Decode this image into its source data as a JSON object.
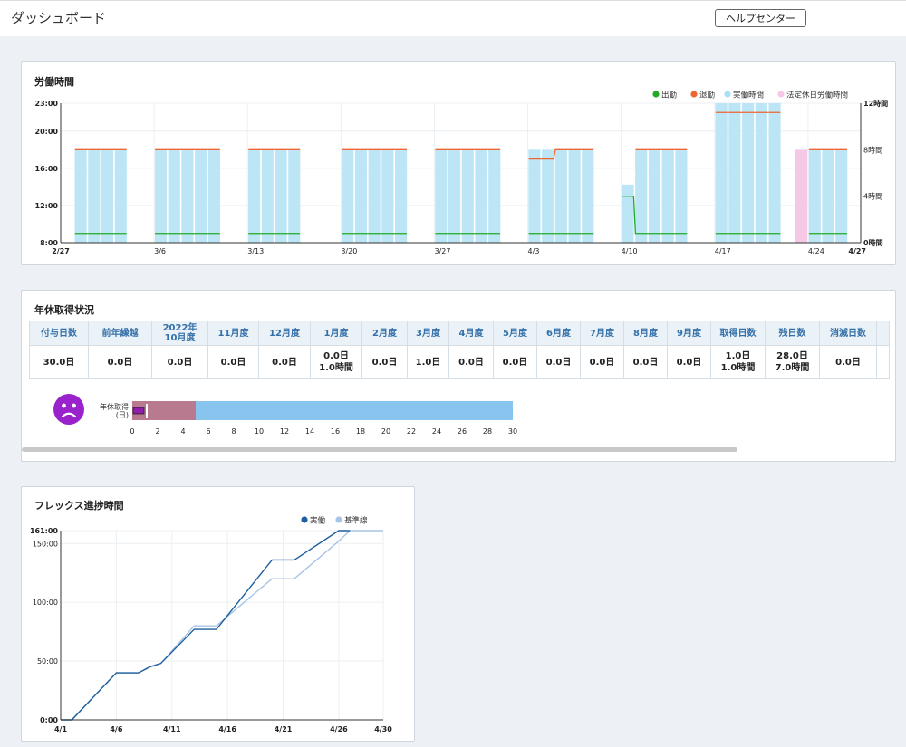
{
  "header": {
    "title": "ダッシュボード",
    "help_label": "ヘルプセンター"
  },
  "work_panel": {
    "title": "労働時間",
    "legend": [
      {
        "label": "出勤",
        "color": "#22aa22",
        "kind": "dot"
      },
      {
        "label": "退勤",
        "color": "#ee6633",
        "kind": "dot"
      },
      {
        "label": "実働時間",
        "color": "#a8e0f5",
        "kind": "dot"
      },
      {
        "label": "法定休日労働時間",
        "color": "#f5c8e6",
        "kind": "dot"
      }
    ],
    "chart_data": {
      "type": "bar",
      "y_left_ticks": [
        "23:00",
        "20:00",
        "16:00",
        "12:00",
        "8:00"
      ],
      "y_left_range": [
        8,
        23
      ],
      "y_right_ticks": [
        "12時間",
        "8時間",
        "4時間",
        "0時間"
      ],
      "y_right_range": [
        0,
        12
      ],
      "x_ticks": [
        "2/27",
        "3/6",
        "3/13",
        "3/20",
        "3/27",
        "4/3",
        "4/10",
        "4/17",
        "4/24",
        "4/27"
      ],
      "days": [
        {
          "date": "2/28",
          "hours": 8,
          "in": 9,
          "out": 18
        },
        {
          "date": "3/1",
          "hours": 8,
          "in": 9,
          "out": 18
        },
        {
          "date": "3/2",
          "hours": 8,
          "in": 9,
          "out": 18
        },
        {
          "date": "3/3",
          "hours": 8,
          "in": 9,
          "out": 18
        },
        {
          "date": "3/6",
          "hours": 8,
          "in": 9,
          "out": 18
        },
        {
          "date": "3/7",
          "hours": 8,
          "in": 9,
          "out": 18
        },
        {
          "date": "3/8",
          "hours": 8,
          "in": 9,
          "out": 18
        },
        {
          "date": "3/9",
          "hours": 8,
          "in": 9,
          "out": 18
        },
        {
          "date": "3/10",
          "hours": 8,
          "in": 9,
          "out": 18
        },
        {
          "date": "3/13",
          "hours": 8,
          "in": 9,
          "out": 18
        },
        {
          "date": "3/14",
          "hours": 8,
          "in": 9,
          "out": 18
        },
        {
          "date": "3/15",
          "hours": 8,
          "in": 9,
          "out": 18
        },
        {
          "date": "3/16",
          "hours": 8,
          "in": 9,
          "out": 18
        },
        {
          "date": "3/20",
          "hours": 8,
          "in": 9,
          "out": 18
        },
        {
          "date": "3/21",
          "hours": 8,
          "in": 9,
          "out": 18
        },
        {
          "date": "3/22",
          "hours": 8,
          "in": 9,
          "out": 18
        },
        {
          "date": "3/23",
          "hours": 8,
          "in": 9,
          "out": 18
        },
        {
          "date": "3/24",
          "hours": 8,
          "in": 9,
          "out": 18
        },
        {
          "date": "3/27",
          "hours": 8,
          "in": 9,
          "out": 18
        },
        {
          "date": "3/28",
          "hours": 8,
          "in": 9,
          "out": 18
        },
        {
          "date": "3/29",
          "hours": 8,
          "in": 9,
          "out": 18
        },
        {
          "date": "3/30",
          "hours": 8,
          "in": 9,
          "out": 18
        },
        {
          "date": "3/31",
          "hours": 8,
          "in": 9,
          "out": 18
        },
        {
          "date": "4/3",
          "hours": 8,
          "in": 9,
          "out": 17
        },
        {
          "date": "4/4",
          "hours": 8,
          "in": 9,
          "out": 17
        },
        {
          "date": "4/5",
          "hours": 8,
          "in": 9,
          "out": 18
        },
        {
          "date": "4/6",
          "hours": 8,
          "in": 9,
          "out": 18
        },
        {
          "date": "4/7",
          "hours": 8,
          "in": 9,
          "out": 18
        },
        {
          "date": "4/10",
          "hours": 5,
          "in": 13,
          "out": null
        },
        {
          "date": "4/11",
          "hours": 8,
          "in": 9,
          "out": 18
        },
        {
          "date": "4/12",
          "hours": 8,
          "in": 9,
          "out": 18
        },
        {
          "date": "4/13",
          "hours": 8,
          "in": 9,
          "out": 18
        },
        {
          "date": "4/14",
          "hours": 8,
          "in": 9,
          "out": 18
        },
        {
          "date": "4/17",
          "hours": 12,
          "in": 9,
          "out": 22
        },
        {
          "date": "4/18",
          "hours": 12,
          "in": 9,
          "out": 22
        },
        {
          "date": "4/19",
          "hours": 12,
          "in": 9,
          "out": 22
        },
        {
          "date": "4/20",
          "hours": 12,
          "in": 9,
          "out": 22
        },
        {
          "date": "4/21",
          "hours": 12,
          "in": 9,
          "out": 22
        },
        {
          "date": "4/23",
          "hours": 8,
          "holiday": true
        },
        {
          "date": "4/24",
          "hours": 8,
          "in": 9,
          "out": 18
        },
        {
          "date": "4/25",
          "hours": 8,
          "in": 9,
          "out": 18
        },
        {
          "date": "4/26",
          "hours": 8,
          "in": 9,
          "out": 18
        }
      ]
    }
  },
  "leave_panel": {
    "title": "年休取得状況",
    "columns": [
      {
        "label": "付与日数",
        "value": "30.0日"
      },
      {
        "label": "前年繰越",
        "value": "0.0日"
      },
      {
        "label": "2022年\n10月度",
        "value": "0.0日"
      },
      {
        "label": "11月度",
        "value": "0.0日"
      },
      {
        "label": "12月度",
        "value": "0.0日"
      },
      {
        "label": "1月度",
        "value": "0.0日\n1.0時間"
      },
      {
        "label": "2月度",
        "value": "0.0日"
      },
      {
        "label": "3月度",
        "value": "1.0日"
      },
      {
        "label": "4月度",
        "value": "0.0日"
      },
      {
        "label": "5月度",
        "value": "0.0日"
      },
      {
        "label": "6月度",
        "value": "0.0日"
      },
      {
        "label": "7月度",
        "value": "0.0日"
      },
      {
        "label": "8月度",
        "value": "0.0日"
      },
      {
        "label": "9月度",
        "value": "0.0日"
      },
      {
        "label": "取得日数",
        "value": "1.0日\n1.0時間"
      },
      {
        "label": "残日数",
        "value": "28.0日\n7.0時間"
      },
      {
        "label": "消滅日数",
        "value": "0.0日"
      }
    ],
    "bar": {
      "label_line1": "年休取得",
      "label_line2": "(日)",
      "ticks": [
        "0",
        "2",
        "4",
        "6",
        "8",
        "10",
        "12",
        "14",
        "16",
        "18",
        "20",
        "22",
        "24",
        "26",
        "28",
        "30"
      ],
      "max": 30,
      "taken": 1.0,
      "guideline": 5,
      "colors": {
        "total": "#88c4ee",
        "guideline": "#b87a8e",
        "taken": "#8e1faa"
      }
    }
  },
  "flex_panel": {
    "title": "フレックス進捗時間",
    "legend": [
      {
        "label": "実働",
        "color": "#1e5f9e"
      },
      {
        "label": "基準線",
        "color": "#a8c4e6"
      }
    ],
    "chart_data": {
      "type": "line",
      "y_ticks": [
        "161:00",
        "150:00",
        "100:00",
        "50:00",
        "0:00"
      ],
      "y_range": [
        0,
        161
      ],
      "x_ticks": [
        "4/1",
        "4/6",
        "4/11",
        "4/16",
        "4/21",
        "4/26",
        "4/30"
      ],
      "x_range": [
        1,
        30
      ],
      "series": [
        {
          "name": "実働",
          "color": "#1e5f9e",
          "points": [
            [
              1,
              0
            ],
            [
              2,
              0
            ],
            [
              6,
              40
            ],
            [
              7,
              40
            ],
            [
              8,
              40
            ],
            [
              9,
              45
            ],
            [
              10,
              48
            ],
            [
              13,
              77
            ],
            [
              14,
              77
            ],
            [
              15,
              77
            ],
            [
              20,
              136
            ],
            [
              21,
              136
            ],
            [
              22,
              136
            ],
            [
              26,
              161
            ],
            [
              27,
              161
            ]
          ]
        },
        {
          "name": "基準線",
          "color": "#a8c4e6",
          "points": [
            [
              1,
              0
            ],
            [
              2,
              0
            ],
            [
              6,
              40
            ],
            [
              7,
              40
            ],
            [
              8,
              40
            ],
            [
              9,
              45
            ],
            [
              10,
              48
            ],
            [
              13,
              80
            ],
            [
              14,
              80
            ],
            [
              15,
              80
            ],
            [
              20,
              120
            ],
            [
              21,
              120
            ],
            [
              22,
              120
            ],
            [
              26,
              152
            ],
            [
              27,
              161
            ],
            [
              30,
              161
            ]
          ]
        }
      ]
    }
  }
}
